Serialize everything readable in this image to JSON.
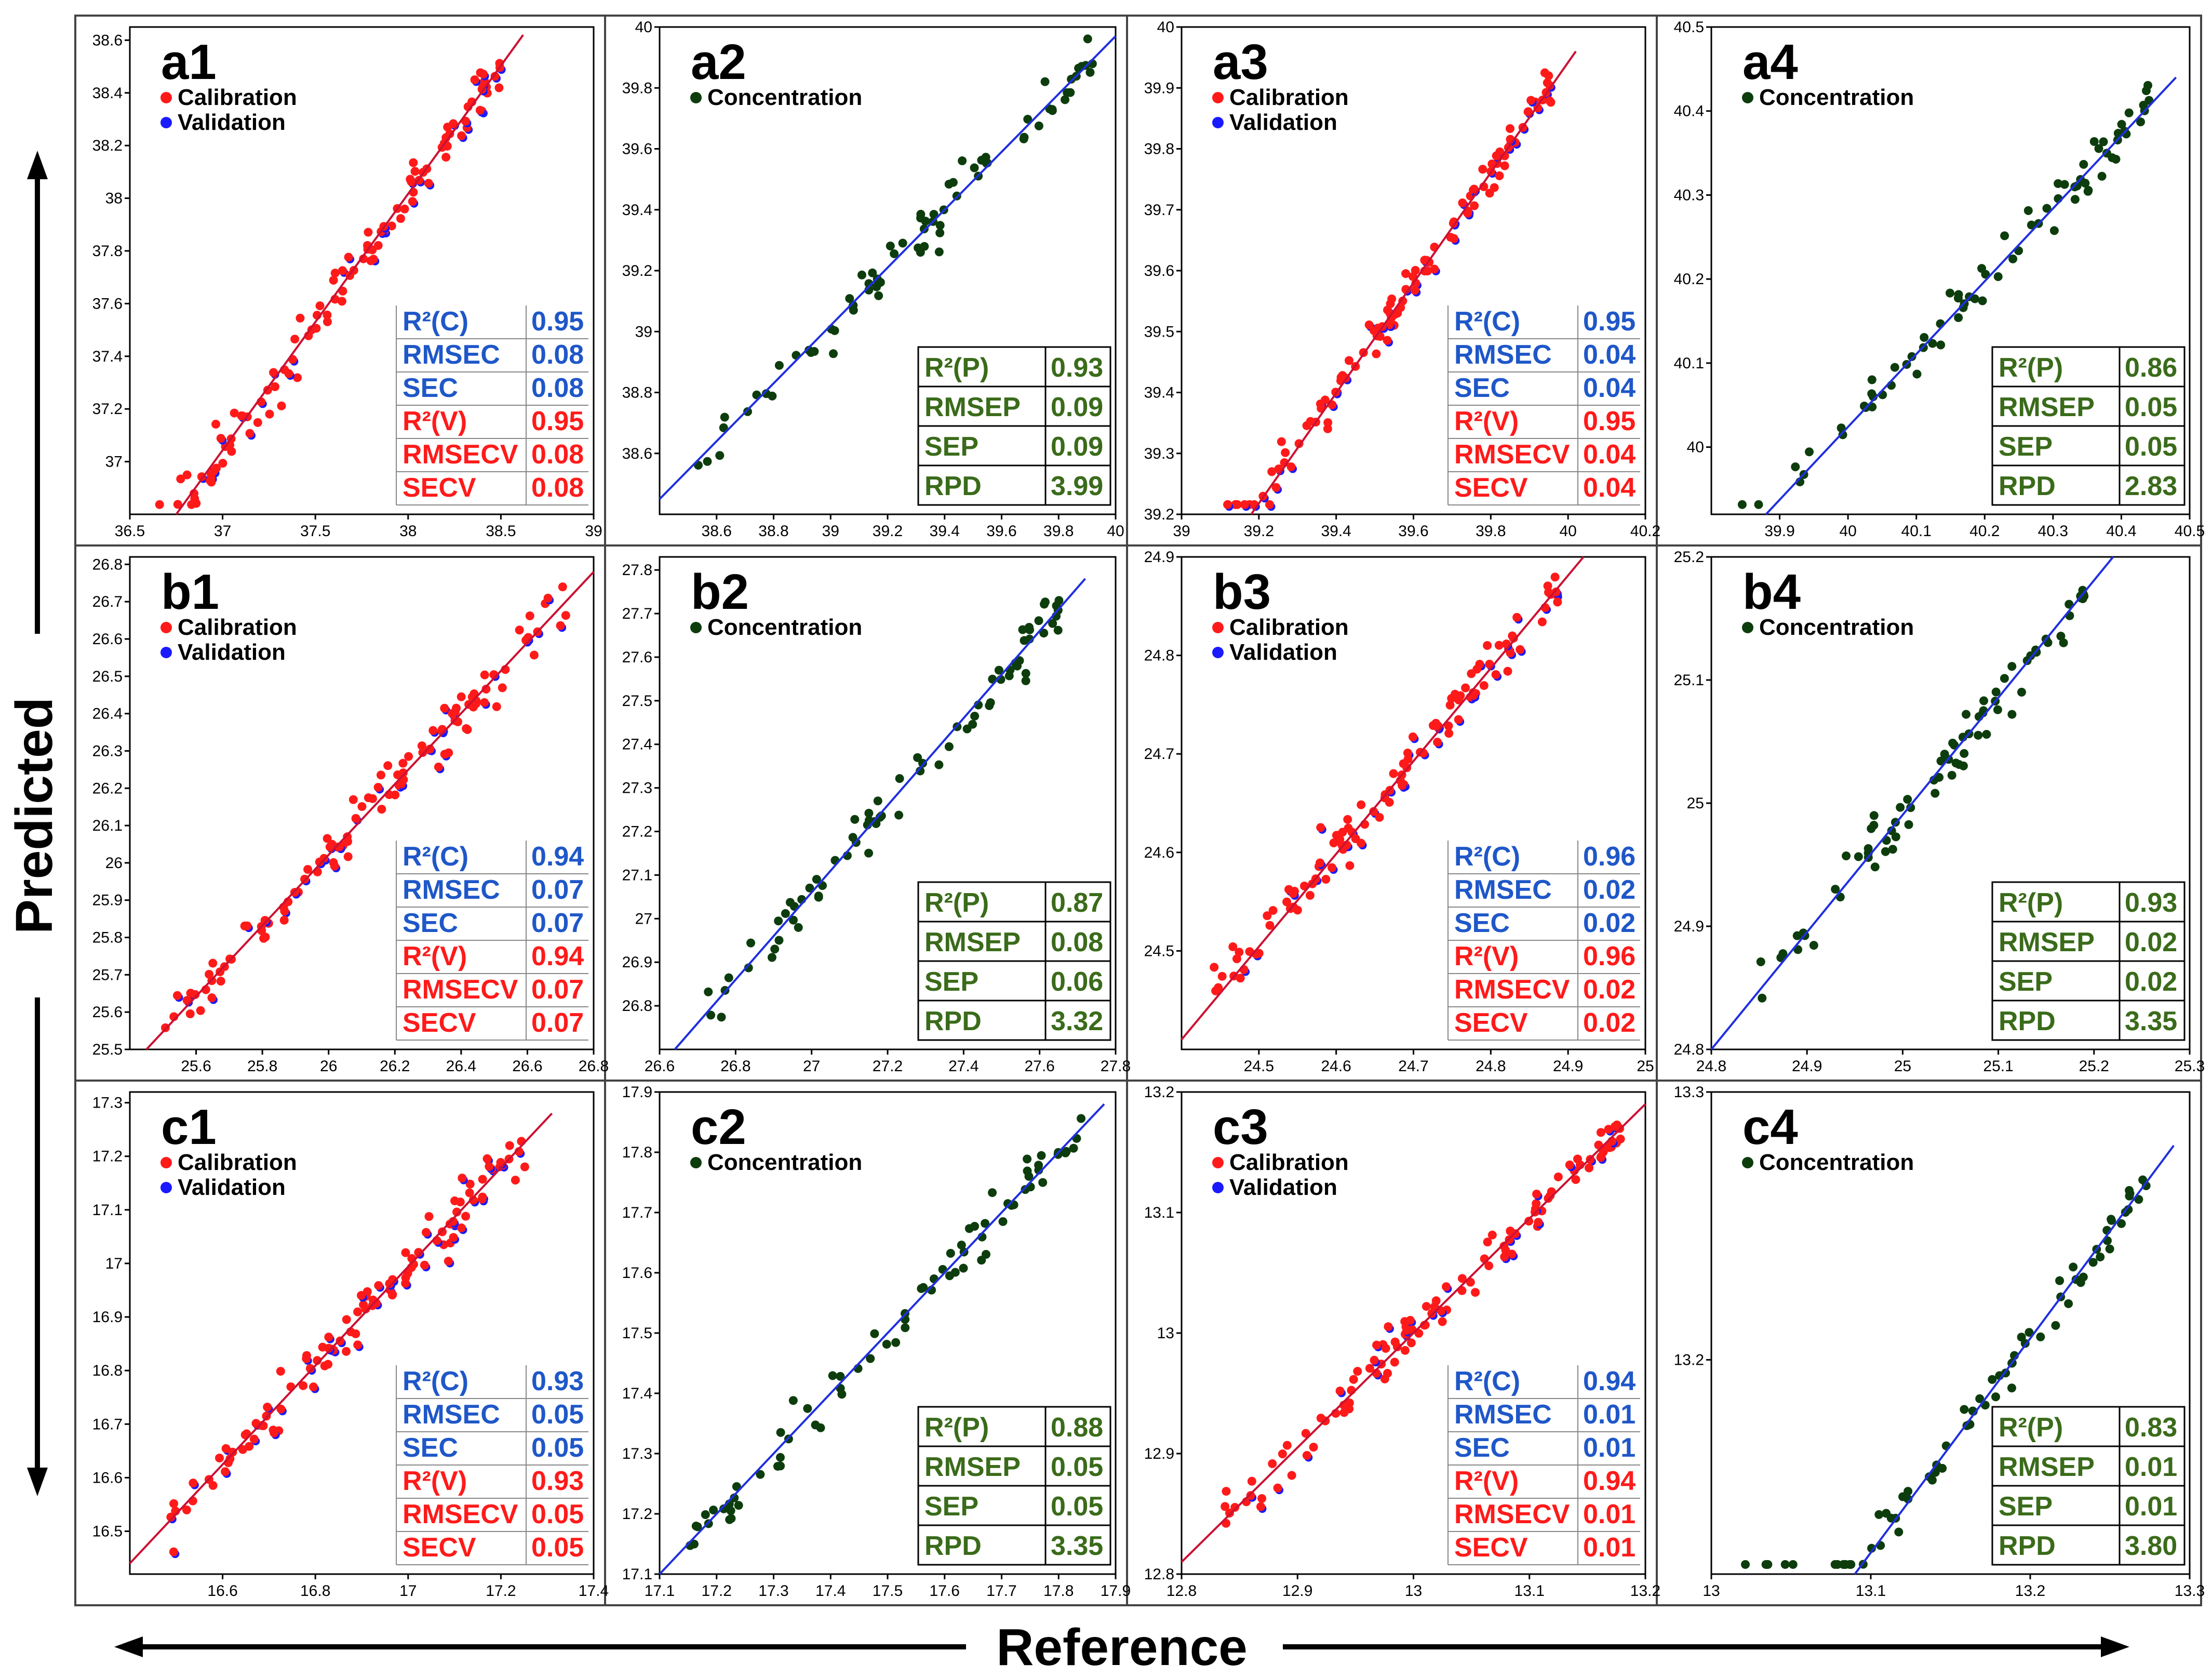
{
  "figure": {
    "xlabel": "Reference",
    "ylabel": "Predicted",
    "colors": {
      "calibration": "#ff1a1a",
      "validation": "#1a1aff",
      "concentration": "#0d3d0d",
      "fit_red": "#cc1133",
      "fit_blue": "#1f2fe0",
      "stat_blue": "#1f57c8",
      "stat_red": "#ff1a1a",
      "stat_green": "#3a6b1a",
      "frame": "#444444"
    }
  },
  "chart_data": [
    {
      "id": "a1",
      "type": "scatter",
      "title": "a1",
      "legend": [
        "Calibration",
        "Validation"
      ],
      "xlim": [
        36.5,
        39
      ],
      "ylim": [
        36.8,
        38.65
      ],
      "xticks": [
        "36.5",
        "37",
        "37.5",
        "38",
        "38.5",
        "39"
      ],
      "yticks": [
        "37",
        "37.2",
        "37.4",
        "37.6",
        "37.8",
        "38",
        "38.2",
        "38.4",
        "38.6"
      ],
      "fit": [
        [
          36.75,
          36.78
        ],
        [
          38.62,
          38.62
        ]
      ],
      "stats": [
        {
          "label": "R²(C)",
          "value": "0.95",
          "tone": "blue"
        },
        {
          "label": "RMSEC",
          "value": "0.08",
          "tone": "blue"
        },
        {
          "label": "SEC",
          "value": "0.08",
          "tone": "blue"
        },
        {
          "label": "R²(V)",
          "value": "0.95",
          "tone": "red"
        },
        {
          "label": "RMSECV",
          "value": "0.08",
          "tone": "red"
        },
        {
          "label": "SECV",
          "value": "0.08",
          "tone": "red"
        }
      ]
    },
    {
      "id": "a2",
      "type": "scatter",
      "title": "a2",
      "legend": [
        "Concentration"
      ],
      "xlim": [
        38.4,
        40
      ],
      "ylim": [
        38.4,
        40
      ],
      "xticks": [
        "38.6",
        "38.8",
        "39",
        "39.2",
        "39.4",
        "39.6",
        "39.8",
        "40"
      ],
      "yticks": [
        "38.6",
        "38.8",
        "39",
        "39.2",
        "39.4",
        "39.6",
        "39.8",
        "40"
      ],
      "fit": [
        [
          38.4,
          38.45
        ],
        [
          40,
          39.97
        ]
      ],
      "stats": [
        {
          "label": "R²(P)",
          "value": "0.93"
        },
        {
          "label": "RMSEP",
          "value": "0.09"
        },
        {
          "label": "SEP",
          "value": "0.09"
        },
        {
          "label": "RPD",
          "value": "3.99"
        }
      ]
    },
    {
      "id": "a3",
      "type": "scatter",
      "title": "a3",
      "legend": [
        "Calibration",
        "Validation"
      ],
      "xlim": [
        39,
        40.2
      ],
      "ylim": [
        39.2,
        40
      ],
      "xticks": [
        "39",
        "39.2",
        "39.4",
        "39.6",
        "39.8",
        "40",
        "40.2"
      ],
      "yticks": [
        "39.2",
        "39.3",
        "39.4",
        "39.5",
        "39.6",
        "39.7",
        "39.8",
        "39.9",
        "40"
      ],
      "fit": [
        [
          39.18,
          39.2
        ],
        [
          40.02,
          39.96
        ]
      ],
      "stats": [
        {
          "label": "R²(C)",
          "value": "0.95",
          "tone": "blue"
        },
        {
          "label": "RMSEC",
          "value": "0.04",
          "tone": "blue"
        },
        {
          "label": "SEC",
          "value": "0.04",
          "tone": "blue"
        },
        {
          "label": "R²(V)",
          "value": "0.95",
          "tone": "red"
        },
        {
          "label": "RMSECV",
          "value": "0.04",
          "tone": "red"
        },
        {
          "label": "SECV",
          "value": "0.04",
          "tone": "red"
        }
      ]
    },
    {
      "id": "a4",
      "type": "scatter",
      "title": "a4",
      "legend": [
        "Concentration"
      ],
      "xlim": [
        39.8,
        40.5
      ],
      "ylim": [
        39.92,
        40.5
      ],
      "xticks": [
        "39.9",
        "40",
        "40.1",
        "40.2",
        "40.3",
        "40.4",
        "40.5"
      ],
      "yticks": [
        "40",
        "40.1",
        "40.2",
        "40.3",
        "40.4",
        "40.5"
      ],
      "fit": [
        [
          39.88,
          39.92
        ],
        [
          40.48,
          40.44
        ]
      ],
      "stats": [
        {
          "label": "R²(P)",
          "value": "0.86"
        },
        {
          "label": "RMSEP",
          "value": "0.05"
        },
        {
          "label": "SEP",
          "value": "0.05"
        },
        {
          "label": "RPD",
          "value": "2.83"
        }
      ]
    },
    {
      "id": "b1",
      "type": "scatter",
      "title": "b1",
      "legend": [
        "Calibration",
        "Validation"
      ],
      "xlim": [
        25.4,
        26.8
      ],
      "ylim": [
        25.5,
        26.82
      ],
      "xticks": [
        "25.6",
        "25.8",
        "26",
        "26.2",
        "26.4",
        "26.6",
        "26.8"
      ],
      "yticks": [
        "25.5",
        "25.6",
        "25.7",
        "25.8",
        "25.9",
        "26",
        "26.1",
        "26.2",
        "26.3",
        "26.4",
        "26.5",
        "26.6",
        "26.7",
        "26.8"
      ],
      "fit": [
        [
          25.45,
          25.5
        ],
        [
          26.8,
          26.78
        ]
      ],
      "stats": [
        {
          "label": "R²(C)",
          "value": "0.94",
          "tone": "blue"
        },
        {
          "label": "RMSEC",
          "value": "0.07",
          "tone": "blue"
        },
        {
          "label": "SEC",
          "value": "0.07",
          "tone": "blue"
        },
        {
          "label": "R²(V)",
          "value": "0.94",
          "tone": "red"
        },
        {
          "label": "RMSECV",
          "value": "0.07",
          "tone": "red"
        },
        {
          "label": "SECV",
          "value": "0.07",
          "tone": "red"
        }
      ]
    },
    {
      "id": "b2",
      "type": "scatter",
      "title": "b2",
      "legend": [
        "Concentration"
      ],
      "xlim": [
        26.6,
        27.8
      ],
      "ylim": [
        26.7,
        27.83
      ],
      "xticks": [
        "26.6",
        "26.8",
        "27",
        "27.2",
        "27.4",
        "27.6",
        "27.8"
      ],
      "yticks": [
        "26.8",
        "26.9",
        "27",
        "27.1",
        "27.2",
        "27.3",
        "27.4",
        "27.5",
        "27.6",
        "27.7",
        "27.8"
      ],
      "fit": [
        [
          26.64,
          26.7
        ],
        [
          27.72,
          27.78
        ]
      ],
      "stats": [
        {
          "label": "R²(P)",
          "value": "0.87"
        },
        {
          "label": "RMSEP",
          "value": "0.08"
        },
        {
          "label": "SEP",
          "value": "0.06"
        },
        {
          "label": "RPD",
          "value": "3.32"
        }
      ]
    },
    {
      "id": "b3",
      "type": "scatter",
      "title": "b3",
      "legend": [
        "Calibration",
        "Validation"
      ],
      "xlim": [
        24.4,
        25
      ],
      "ylim": [
        24.4,
        24.9
      ],
      "xticks": [
        "24.5",
        "24.6",
        "24.7",
        "24.8",
        "24.9",
        "25"
      ],
      "yticks": [
        "24.5",
        "24.6",
        "24.7",
        "24.8",
        "24.9"
      ],
      "fit": [
        [
          24.4,
          24.41
        ],
        [
          24.92,
          24.9
        ]
      ],
      "stats": [
        {
          "label": "R²(C)",
          "value": "0.96",
          "tone": "blue"
        },
        {
          "label": "RMSEC",
          "value": "0.02",
          "tone": "blue"
        },
        {
          "label": "SEC",
          "value": "0.02",
          "tone": "blue"
        },
        {
          "label": "R²(V)",
          "value": "0.96",
          "tone": "red"
        },
        {
          "label": "RMSECV",
          "value": "0.02",
          "tone": "red"
        },
        {
          "label": "SECV",
          "value": "0.02",
          "tone": "red"
        }
      ]
    },
    {
      "id": "b4",
      "type": "scatter",
      "title": "b4",
      "legend": [
        "Concentration"
      ],
      "xlim": [
        24.8,
        25.3
      ],
      "ylim": [
        24.8,
        25.2
      ],
      "xticks": [
        "24.8",
        "24.9",
        "25",
        "25.1",
        "25.2",
        "25.3"
      ],
      "yticks": [
        "24.8",
        "24.9",
        "25",
        "25.1",
        "25.2"
      ],
      "fit": [
        [
          24.8,
          24.8
        ],
        [
          25.22,
          25.2
        ]
      ],
      "stats": [
        {
          "label": "R²(P)",
          "value": "0.93"
        },
        {
          "label": "RMSEP",
          "value": "0.02"
        },
        {
          "label": "SEP",
          "value": "0.02"
        },
        {
          "label": "RPD",
          "value": "3.35"
        }
      ]
    },
    {
      "id": "c1",
      "type": "scatter",
      "title": "c1",
      "legend": [
        "Calibration",
        "Validation"
      ],
      "xlim": [
        16.4,
        17.4
      ],
      "ylim": [
        16.42,
        17.32
      ],
      "xticks": [
        "16.6",
        "16.8",
        "17",
        "17.2",
        "17.4"
      ],
      "yticks": [
        "16.5",
        "16.6",
        "16.7",
        "16.8",
        "16.9",
        "17",
        "17.1",
        "17.2",
        "17.3"
      ],
      "fit": [
        [
          16.4,
          16.44
        ],
        [
          17.31,
          17.28
        ]
      ],
      "stats": [
        {
          "label": "R²(C)",
          "value": "0.93",
          "tone": "blue"
        },
        {
          "label": "RMSEC",
          "value": "0.05",
          "tone": "blue"
        },
        {
          "label": "SEC",
          "value": "0.05",
          "tone": "blue"
        },
        {
          "label": "R²(V)",
          "value": "0.93",
          "tone": "red"
        },
        {
          "label": "RMSECV",
          "value": "0.05",
          "tone": "red"
        },
        {
          "label": "SECV",
          "value": "0.05",
          "tone": "red"
        }
      ]
    },
    {
      "id": "c2",
      "type": "scatter",
      "title": "c2",
      "legend": [
        "Concentration"
      ],
      "xlim": [
        17.1,
        17.9
      ],
      "ylim": [
        17.1,
        17.9
      ],
      "xticks": [
        "17.1",
        "17.2",
        "17.3",
        "17.4",
        "17.5",
        "17.6",
        "17.7",
        "17.8",
        "17.9"
      ],
      "yticks": [
        "17.1",
        "17.2",
        "17.3",
        "17.4",
        "17.5",
        "17.6",
        "17.7",
        "17.8",
        "17.9"
      ],
      "fit": [
        [
          17.1,
          17.1
        ],
        [
          17.88,
          17.88
        ]
      ],
      "stats": [
        {
          "label": "R²(P)",
          "value": "0.88"
        },
        {
          "label": "RMSEP",
          "value": "0.05"
        },
        {
          "label": "SEP",
          "value": "0.05"
        },
        {
          "label": "RPD",
          "value": "3.35"
        }
      ]
    },
    {
      "id": "c3",
      "type": "scatter",
      "title": "c3",
      "legend": [
        "Calibration",
        "Validation"
      ],
      "xlim": [
        12.8,
        13.2
      ],
      "ylim": [
        12.8,
        13.2
      ],
      "xticks": [
        "12.8",
        "12.9",
        "13",
        "13.1",
        "13.2"
      ],
      "yticks": [
        "12.8",
        "12.9",
        "13",
        "13.1",
        "13.2"
      ],
      "fit": [
        [
          12.8,
          12.81
        ],
        [
          13.2,
          13.19
        ]
      ],
      "stats": [
        {
          "label": "R²(C)",
          "value": "0.94",
          "tone": "blue"
        },
        {
          "label": "RMSEC",
          "value": "0.01",
          "tone": "blue"
        },
        {
          "label": "SEC",
          "value": "0.01",
          "tone": "blue"
        },
        {
          "label": "R²(V)",
          "value": "0.94",
          "tone": "red"
        },
        {
          "label": "RMSECV",
          "value": "0.01",
          "tone": "red"
        },
        {
          "label": "SECV",
          "value": "0.01",
          "tone": "red"
        }
      ]
    },
    {
      "id": "c4",
      "type": "scatter",
      "title": "c4",
      "legend": [
        "Concentration"
      ],
      "xlim": [
        13,
        13.3
      ],
      "ylim": [
        13.12,
        13.3
      ],
      "xticks": [
        "13",
        "13.1",
        "13.2",
        "13.3"
      ],
      "yticks": [
        "13.2",
        "13.3"
      ],
      "fit": [
        [
          13.09,
          13.12
        ],
        [
          13.29,
          13.28
        ]
      ],
      "stats": [
        {
          "label": "R²(P)",
          "value": "0.83"
        },
        {
          "label": "RMSEP",
          "value": "0.01"
        },
        {
          "label": "SEP",
          "value": "0.01"
        },
        {
          "label": "RPD",
          "value": "3.80"
        }
      ]
    }
  ]
}
